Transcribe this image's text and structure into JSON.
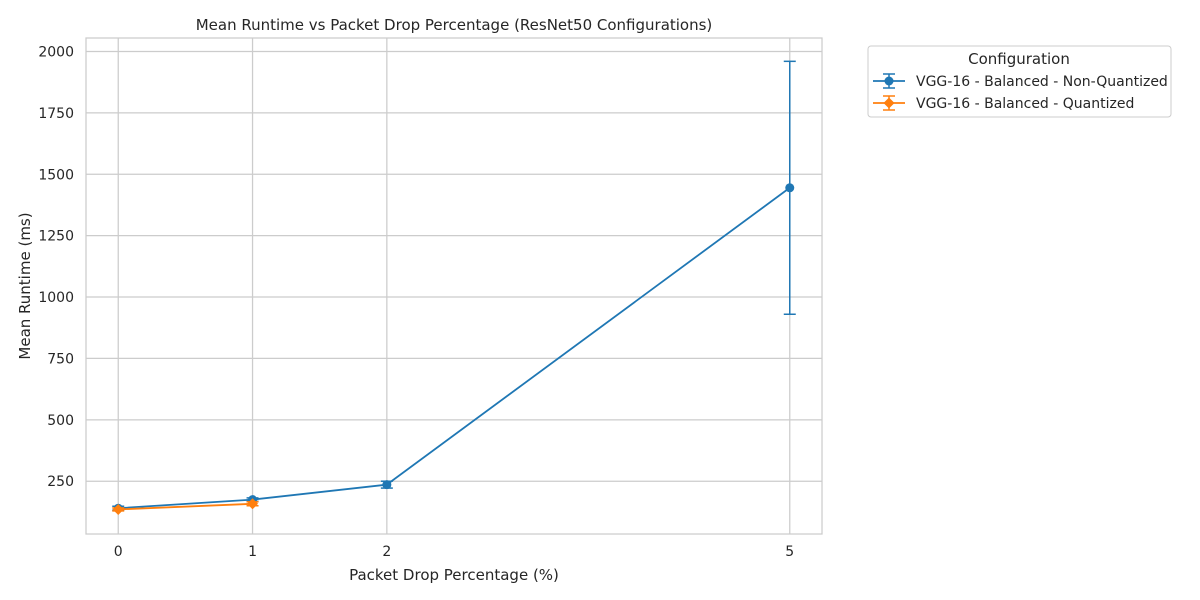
{
  "chart_data": {
    "type": "line",
    "title": "Mean Runtime vs Packet Drop Percentage (ResNet50 Configurations)",
    "xlabel": "Packet Drop Percentage (%)",
    "ylabel": "Mean Runtime (ms)",
    "x_ticks": [
      0,
      1,
      2,
      5
    ],
    "y_ticks": [
      250,
      500,
      750,
      1000,
      1250,
      1500,
      1750,
      2000
    ],
    "xlim": [
      -0.24,
      5.24
    ],
    "ylim": [
      35,
      2055
    ],
    "grid": true,
    "legend": {
      "title": "Configuration",
      "placement": "outside-top-right"
    },
    "series": [
      {
        "name": "VGG-16 - Balanced - Non-Quantized",
        "color": "#1f77b4",
        "marker": "circle",
        "points": [
          {
            "x": 0,
            "y": 140,
            "err_low": 132,
            "err_high": 148
          },
          {
            "x": 1,
            "y": 175,
            "err_low": 168,
            "err_high": 182
          },
          {
            "x": 2,
            "y": 236,
            "err_low": 222,
            "err_high": 250
          },
          {
            "x": 5,
            "y": 1445,
            "err_low": 930,
            "err_high": 1960
          }
        ]
      },
      {
        "name": "VGG-16 - Balanced - Quantized",
        "color": "#ff7f0e",
        "marker": "diamond",
        "points": [
          {
            "x": 0,
            "y": 135,
            "err_low": 129,
            "err_high": 141
          },
          {
            "x": 1,
            "y": 158,
            "err_low": 150,
            "err_high": 166
          }
        ]
      }
    ]
  }
}
